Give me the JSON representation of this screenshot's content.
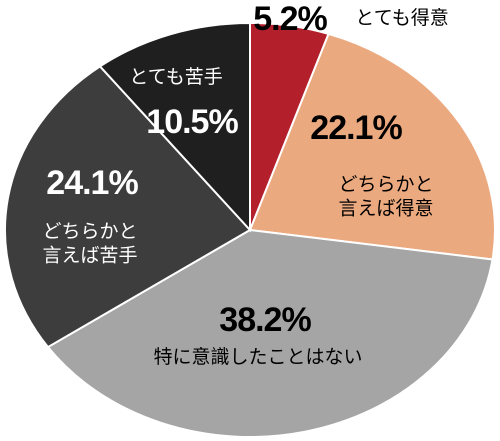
{
  "chart_data": {
    "type": "pie",
    "categories": [
      "とても得意",
      "どちらかと\n言えば得意",
      "特に意識したことはない",
      "どちらかと\n言えば苦手",
      "とても苦手"
    ],
    "values": [
      5.2,
      22.1,
      38.2,
      24.1,
      10.5
    ],
    "value_labels": [
      "5.2%",
      "22.1%",
      "38.2%",
      "24.1%",
      "10.5%"
    ],
    "colors": [
      "#b31f2b",
      "#eba97f",
      "#a5a5a5",
      "#3d3d3d",
      "#1f1f1f"
    ]
  }
}
